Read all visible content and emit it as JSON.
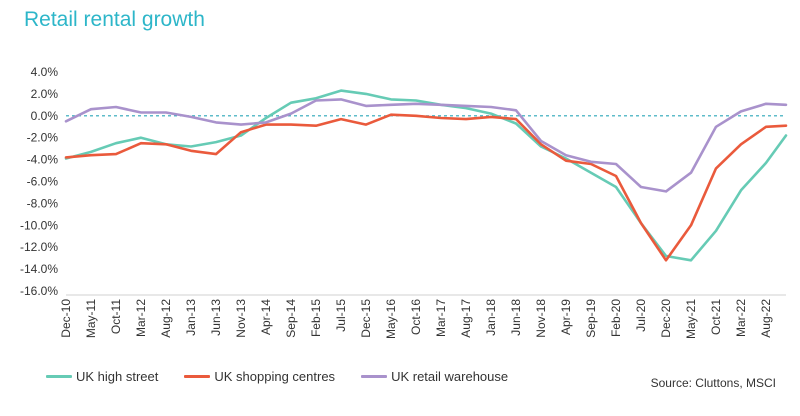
{
  "title": "Retail rental growth",
  "source": "Source: Cluttons, MSCI",
  "colors": {
    "high_street": "#66cbb5",
    "shopping_centres": "#ea5a3c",
    "retail_warehouse": "#a992cc",
    "zero_line": "#2aa6b8",
    "text": "#333333",
    "title": "#2db6c9"
  },
  "chart_data": {
    "type": "line",
    "ylim": [
      -16,
      4
    ],
    "yticks": [
      4,
      2,
      0,
      -2,
      -4,
      -6,
      -8,
      -10,
      -12,
      -14,
      -16
    ],
    "ytick_labels": [
      "4.0%",
      "2.0%",
      "0.0%",
      "-2.0%",
      "-4.0%",
      "-6.0%",
      "-8.0%",
      "-10.0%",
      "-12.0%",
      "-14.0%",
      "-16.0%"
    ],
    "xtick_labels": [
      "Dec-10",
      "May-11",
      "Oct-11",
      "Mar-12",
      "Aug-12",
      "Jan-13",
      "Jun-13",
      "Nov-13",
      "Apr-14",
      "Sep-14",
      "Feb-15",
      "Jul-15",
      "Dec-15",
      "May-16",
      "Oct-16",
      "Mar-17",
      "Aug-17",
      "Jan-18",
      "Jun-18",
      "Nov-18",
      "Apr-19",
      "Sep-19",
      "Feb-20",
      "Jul-20",
      "Dec-20",
      "May-21",
      "Oct-21",
      "Mar-22",
      "Aug-22"
    ],
    "x_start": "Dec-10",
    "x_end": "Dec-22",
    "reference_line": 0,
    "series": [
      {
        "name": "UK high street",
        "color": "#66cbb5",
        "points": [
          [
            "Dec-10",
            -3.9
          ],
          [
            "May-11",
            -3.3
          ],
          [
            "Oct-11",
            -2.5
          ],
          [
            "Mar-12",
            -2.0
          ],
          [
            "Aug-12",
            -2.6
          ],
          [
            "Jan-13",
            -2.8
          ],
          [
            "Jun-13",
            -2.4
          ],
          [
            "Nov-13",
            -1.8
          ],
          [
            "Apr-14",
            -0.2
          ],
          [
            "Sep-14",
            1.2
          ],
          [
            "Feb-15",
            1.6
          ],
          [
            "Jul-15",
            2.3
          ],
          [
            "Dec-15",
            2.0
          ],
          [
            "May-16",
            1.5
          ],
          [
            "Oct-16",
            1.4
          ],
          [
            "Mar-17",
            1.0
          ],
          [
            "Aug-17",
            0.7
          ],
          [
            "Jan-18",
            0.2
          ],
          [
            "Jun-18",
            -0.7
          ],
          [
            "Nov-18",
            -2.8
          ],
          [
            "Apr-19",
            -3.9
          ],
          [
            "Sep-19",
            -5.2
          ],
          [
            "Feb-20",
            -6.5
          ],
          [
            "Jul-20",
            -9.8
          ],
          [
            "Dec-20",
            -12.8
          ],
          [
            "May-21",
            -13.2
          ],
          [
            "Oct-21",
            -10.5
          ],
          [
            "Mar-22",
            -6.8
          ],
          [
            "Aug-22",
            -4.3
          ],
          [
            "Dec-22",
            -1.8
          ]
        ]
      },
      {
        "name": "UK shopping centres",
        "color": "#ea5a3c",
        "points": [
          [
            "Dec-10",
            -3.8
          ],
          [
            "May-11",
            -3.6
          ],
          [
            "Oct-11",
            -3.5
          ],
          [
            "Mar-12",
            -2.5
          ],
          [
            "Aug-12",
            -2.6
          ],
          [
            "Jan-13",
            -3.2
          ],
          [
            "Jun-13",
            -3.5
          ],
          [
            "Nov-13",
            -1.5
          ],
          [
            "Apr-14",
            -0.8
          ],
          [
            "Sep-14",
            -0.8
          ],
          [
            "Feb-15",
            -0.9
          ],
          [
            "Jul-15",
            -0.3
          ],
          [
            "Dec-15",
            -0.8
          ],
          [
            "May-16",
            0.1
          ],
          [
            "Oct-16",
            0.0
          ],
          [
            "Mar-17",
            -0.2
          ],
          [
            "Aug-17",
            -0.3
          ],
          [
            "Jan-18",
            -0.1
          ],
          [
            "Jun-18",
            -0.3
          ],
          [
            "Nov-18",
            -2.6
          ],
          [
            "Apr-19",
            -4.1
          ],
          [
            "Sep-19",
            -4.4
          ],
          [
            "Feb-20",
            -5.5
          ],
          [
            "Jul-20",
            -9.8
          ],
          [
            "Dec-20",
            -13.2
          ],
          [
            "May-21",
            -10.0
          ],
          [
            "Oct-21",
            -4.8
          ],
          [
            "Mar-22",
            -2.6
          ],
          [
            "Aug-22",
            -1.0
          ],
          [
            "Dec-22",
            -0.9
          ]
        ]
      },
      {
        "name": "UK retail warehouse",
        "color": "#a992cc",
        "points": [
          [
            "Dec-10",
            -0.5
          ],
          [
            "May-11",
            0.6
          ],
          [
            "Oct-11",
            0.8
          ],
          [
            "Mar-12",
            0.3
          ],
          [
            "Aug-12",
            0.3
          ],
          [
            "Jan-13",
            -0.1
          ],
          [
            "Jun-13",
            -0.6
          ],
          [
            "Nov-13",
            -0.8
          ],
          [
            "Apr-14",
            -0.6
          ],
          [
            "Sep-14",
            0.2
          ],
          [
            "Feb-15",
            1.4
          ],
          [
            "Jul-15",
            1.5
          ],
          [
            "Dec-15",
            0.9
          ],
          [
            "May-16",
            1.0
          ],
          [
            "Oct-16",
            1.1
          ],
          [
            "Mar-17",
            1.0
          ],
          [
            "Aug-17",
            0.9
          ],
          [
            "Jan-18",
            0.8
          ],
          [
            "Jun-18",
            0.5
          ],
          [
            "Nov-18",
            -2.3
          ],
          [
            "Apr-19",
            -3.6
          ],
          [
            "Sep-19",
            -4.2
          ],
          [
            "Feb-20",
            -4.4
          ],
          [
            "Jul-20",
            -6.5
          ],
          [
            "Dec-20",
            -6.9
          ],
          [
            "May-21",
            -5.2
          ],
          [
            "Oct-21",
            -1.0
          ],
          [
            "Mar-22",
            0.4
          ],
          [
            "Aug-22",
            1.1
          ],
          [
            "Dec-22",
            1.0
          ]
        ]
      }
    ]
  }
}
